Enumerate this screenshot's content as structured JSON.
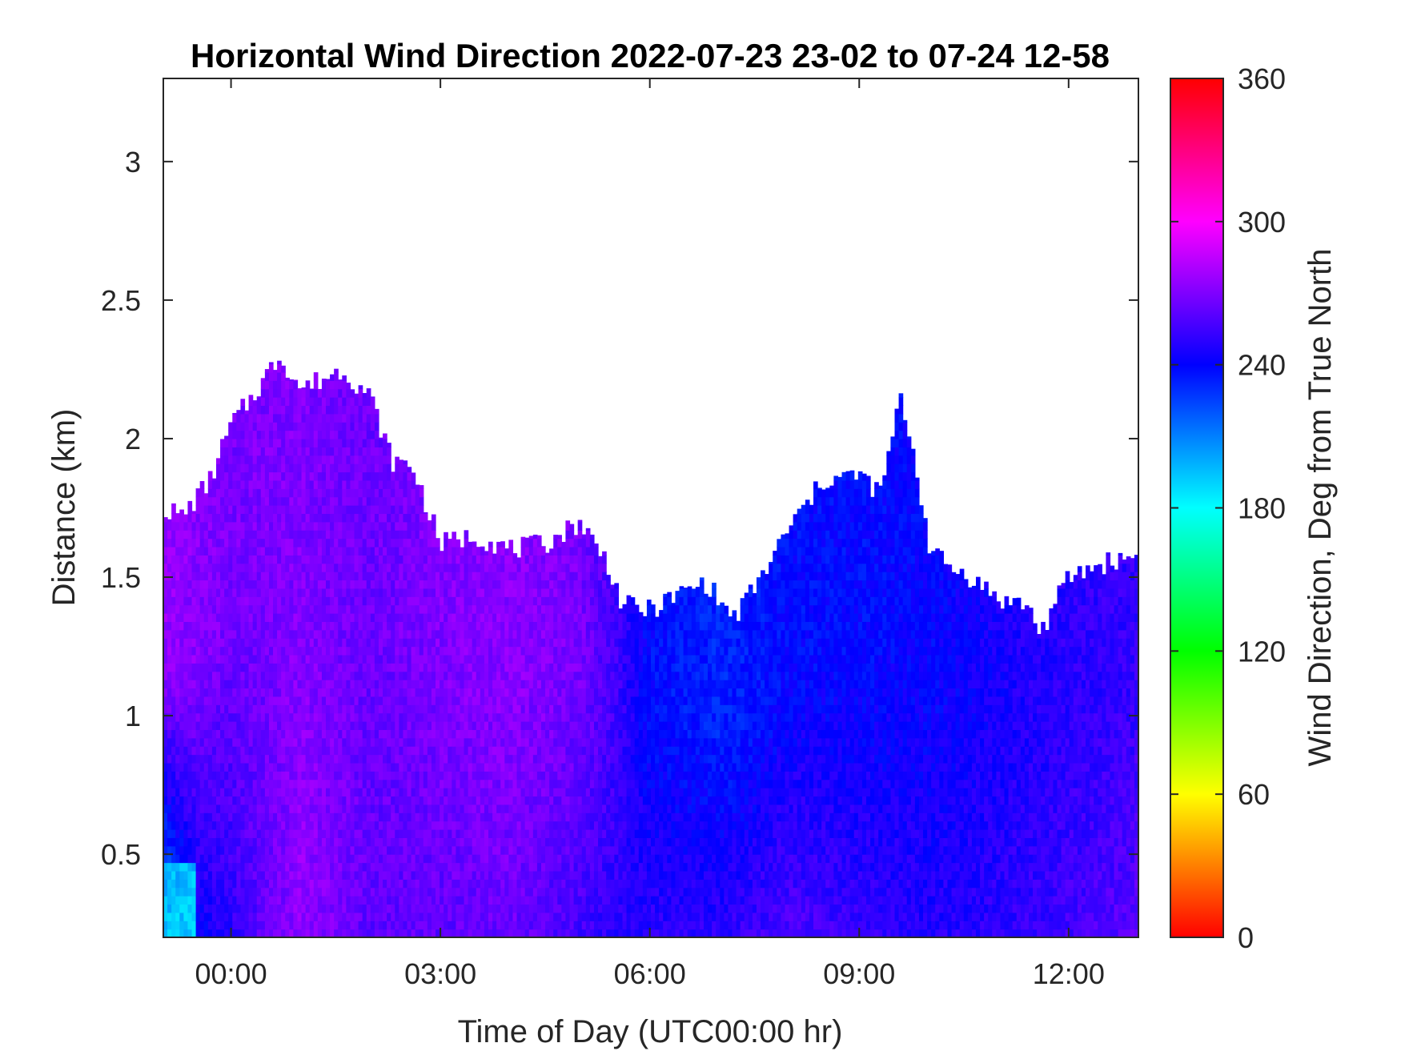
{
  "chart_data": {
    "type": "heatmap",
    "title": "Horizontal Wind Direction 2022-07-23 23-02 to 07-24 12-58",
    "xlabel": "Time of Day (UTC00:00 hr)",
    "ylabel": "Distance (km)",
    "x_unit": "hours since 00:00 UTC",
    "xlim": [
      -0.97,
      13.0
    ],
    "ylim": [
      0.2,
      3.3
    ],
    "x_ticks": [
      {
        "value": 0,
        "label": "00:00"
      },
      {
        "value": 3,
        "label": "03:00"
      },
      {
        "value": 6,
        "label": "06:00"
      },
      {
        "value": 9,
        "label": "09:00"
      },
      {
        "value": 12,
        "label": "12:00"
      }
    ],
    "y_ticks": [
      {
        "value": 0.5,
        "label": "0.5"
      },
      {
        "value": 1,
        "label": "1"
      },
      {
        "value": 1.5,
        "label": "1.5"
      },
      {
        "value": 2,
        "label": "2"
      },
      {
        "value": 2.5,
        "label": "2.5"
      },
      {
        "value": 3,
        "label": "3"
      }
    ],
    "colorbar": {
      "label": "Wind Direction, Deg from True North",
      "range": [
        0,
        360
      ],
      "colormap": "hsv",
      "ticks": [
        {
          "value": 0,
          "label": "0"
        },
        {
          "value": 60,
          "label": "60"
        },
        {
          "value": 120,
          "label": "120"
        },
        {
          "value": 180,
          "label": "180"
        },
        {
          "value": 240,
          "label": "240"
        },
        {
          "value": 300,
          "label": "300"
        },
        {
          "value": 360,
          "label": "360"
        }
      ]
    },
    "data_top_km": {
      "x": [
        -0.97,
        -0.7,
        -0.3,
        0,
        0.3,
        0.7,
        1.0,
        1.6,
        2.0,
        2.3,
        2.6,
        3.0,
        3.5,
        4.0,
        4.5,
        5.0,
        5.4,
        5.6,
        6.0,
        6.5,
        6.8,
        7.2,
        7.6,
        8.0,
        8.5,
        9.0,
        9.3,
        9.6,
        9.8,
        10.0,
        10.2,
        10.6,
        11.0,
        11.4,
        11.6,
        12.0,
        12.5,
        13.0
      ],
      "y": [
        1.75,
        1.72,
        1.85,
        2.05,
        2.15,
        2.3,
        2.18,
        2.25,
        2.15,
        1.92,
        1.9,
        1.62,
        1.65,
        1.6,
        1.62,
        1.7,
        1.55,
        1.4,
        1.38,
        1.45,
        1.48,
        1.35,
        1.5,
        1.68,
        1.85,
        1.87,
        1.8,
        2.15,
        1.92,
        1.62,
        1.55,
        1.5,
        1.42,
        1.4,
        1.3,
        1.5,
        1.55,
        1.58
      ]
    },
    "direction_profile_deg": {
      "x": [
        -0.97,
        -0.5,
        0,
        1.0,
        2.0,
        3.0,
        4.0,
        5.0,
        5.5,
        6.0,
        7.0,
        8.0,
        9.0,
        10.0,
        11.0,
        12.0,
        13.0
      ],
      "upper_layer": [
        275,
        272,
        268,
        270,
        265,
        270,
        272,
        268,
        255,
        238,
        232,
        238,
        238,
        240,
        245,
        250,
        252
      ],
      "lower_layer": [
        205,
        240,
        250,
        275,
        262,
        262,
        265,
        255,
        250,
        250,
        250,
        258,
        252,
        248,
        250,
        255,
        262
      ]
    }
  }
}
